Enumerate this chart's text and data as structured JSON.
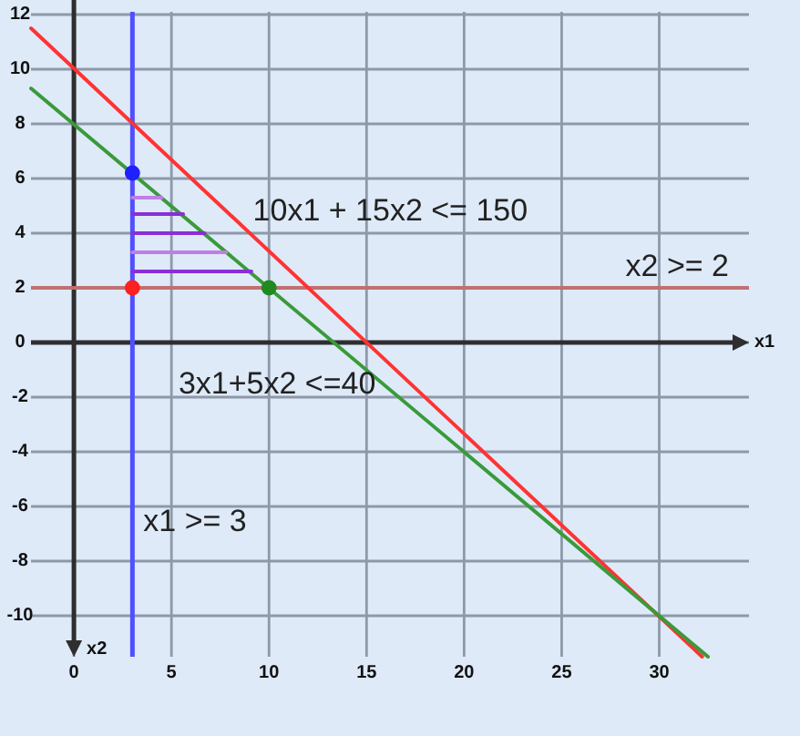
{
  "chart_data": {
    "type": "line",
    "xlim": [
      -2.2,
      34.6
    ],
    "ylim": [
      -11.5,
      12.1
    ],
    "xticks": [
      0,
      5,
      10,
      15,
      20,
      25,
      30
    ],
    "yticks": [
      -10,
      -8,
      -6,
      -4,
      -2,
      0,
      2,
      4,
      6,
      8,
      10,
      12
    ],
    "xlabel": "x1",
    "ylabel": "x2",
    "grid": true,
    "marker": "none",
    "series": [
      {
        "name": "10x1 + 15x2 <= 150",
        "color": "#ff3333",
        "x": [
          -2.2,
          32.2
        ],
        "values": [
          11.5,
          -11.5
        ]
      },
      {
        "name": "3x1+5x2 <=40",
        "color": "#3a9a3a",
        "x": [
          -2.2,
          32.5
        ],
        "values": [
          9.3,
          -11.5
        ]
      },
      {
        "color": "#c07ee6",
        "x": [
          3,
          4.5
        ],
        "values": [
          5.3,
          5.3
        ]
      },
      {
        "color": "#8a2ed6",
        "x": [
          3,
          5.6
        ],
        "values": [
          4.7,
          4.7
        ]
      },
      {
        "color": "#8a2ed6",
        "x": [
          3,
          6.7
        ],
        "values": [
          4,
          4
        ]
      },
      {
        "color": "#c07ee6",
        "x": [
          3,
          7.8
        ],
        "values": [
          3.3,
          3.3
        ]
      },
      {
        "color": "#8a2ed6",
        "x": [
          3,
          9.1
        ],
        "values": [
          2.6,
          2.6
        ]
      },
      {
        "type": "scatter",
        "color": "#2020ff",
        "marker": "circle",
        "x": [
          3
        ],
        "values": [
          6.2
        ]
      },
      {
        "type": "scatter",
        "color": "#ff2020",
        "marker": "circle",
        "x": [
          3
        ],
        "values": [
          2
        ]
      },
      {
        "type": "scatter",
        "color": "#208a20",
        "marker": "circle",
        "x": [
          10
        ],
        "values": [
          2
        ]
      }
    ],
    "ref_lines": [
      {
        "axis": "x",
        "value": 3,
        "color": "#5050ff",
        "label": "x1 >= 3"
      },
      {
        "axis": "y",
        "value": 2,
        "color": "#c07070",
        "label": "x2 >= 2"
      }
    ]
  }
}
